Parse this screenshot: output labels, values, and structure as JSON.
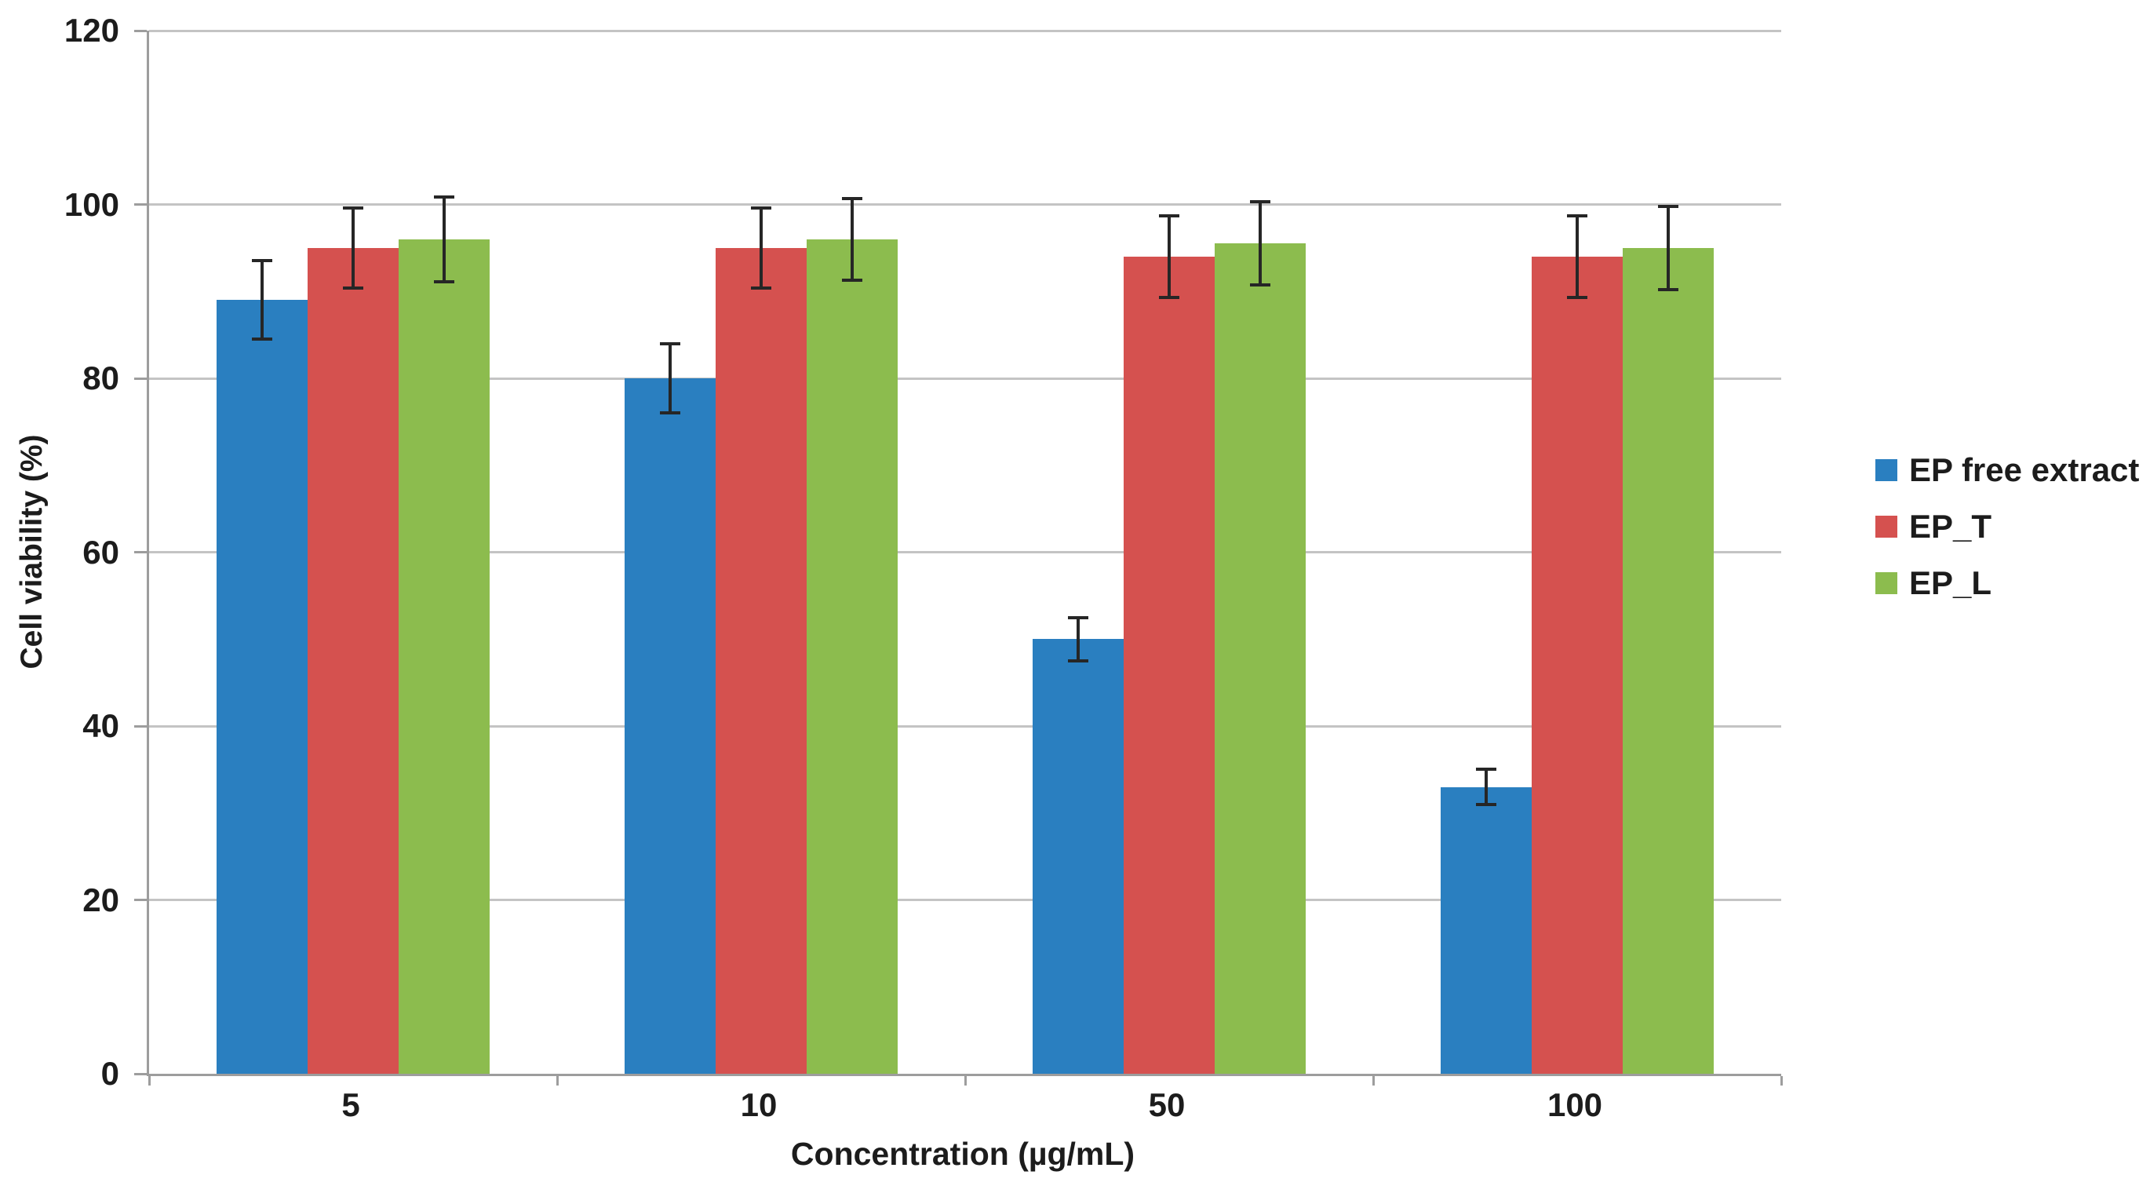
{
  "chart_data": {
    "type": "bar",
    "title": "",
    "categories": [
      "5",
      "10",
      "50",
      "100"
    ],
    "xlabel": "Concentration (µg/mL)",
    "ylabel": "Cell viability (%)",
    "ylim": [
      0,
      120
    ],
    "yticks": [
      0,
      20,
      40,
      60,
      80,
      100,
      120
    ],
    "grid": true,
    "legend_position": "right",
    "error_bars": true,
    "series": [
      {
        "name": "EP free extract",
        "color": "#2a7fc0",
        "values": [
          89,
          80,
          50,
          33
        ],
        "errors": [
          4.5,
          4.0,
          2.5,
          2.0
        ]
      },
      {
        "name": "EP_T",
        "color": "#d5514f",
        "values": [
          95,
          95,
          94,
          94
        ],
        "errors": [
          4.6,
          4.6,
          4.7,
          4.7
        ]
      },
      {
        "name": "EP_L",
        "color": "#8cbc4e",
        "values": [
          96,
          96,
          95.5,
          95
        ],
        "errors": [
          4.9,
          4.7,
          4.8,
          4.8
        ]
      }
    ]
  },
  "colors": {
    "gridline": "#c4c4c4",
    "axis": "#9d9d9d",
    "error_bar": "#262626",
    "text": "#1c1c1c",
    "background": "#ffffff"
  }
}
